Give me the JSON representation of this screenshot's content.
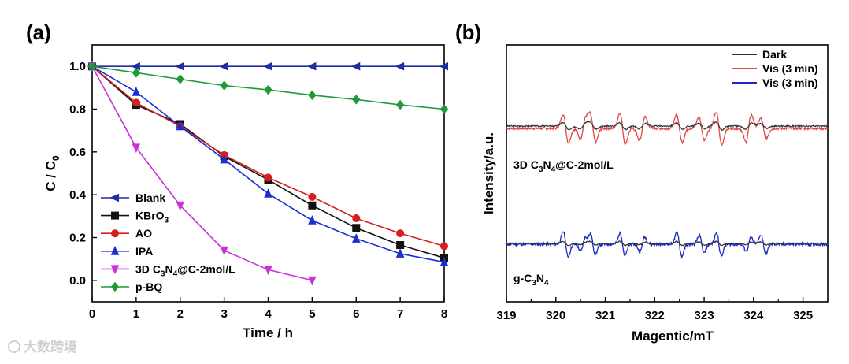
{
  "watermark": "大数跨境",
  "chart_data": [
    {
      "panel": "(a)",
      "type": "line",
      "xlabel": "Time / h",
      "ylabel_main": "C / C",
      "ylabel_sub": "0",
      "xlim": [
        0,
        8
      ],
      "ylim": [
        -0.1,
        1.1
      ],
      "xticks": [
        0,
        1,
        2,
        3,
        4,
        5,
        6,
        7,
        8
      ],
      "yticks": [
        0.0,
        0.2,
        0.4,
        0.6,
        0.8,
        1.0
      ],
      "legend_position": "bottom-left",
      "series": [
        {
          "name": "Blank",
          "color": "#1f2fa0",
          "marker": "triangle-left",
          "x": [
            0,
            1,
            2,
            3,
            4,
            5,
            6,
            7,
            8
          ],
          "y": [
            1.0,
            1.0,
            1.0,
            1.0,
            1.0,
            1.0,
            1.0,
            1.0,
            1.0
          ]
        },
        {
          "name": "KBrO3",
          "legend_main": "KBrO",
          "legend_sub": "3",
          "color": "#111111",
          "marker": "square",
          "x": [
            0,
            1,
            2,
            3,
            4,
            5,
            6,
            7,
            8
          ],
          "y": [
            1.0,
            0.82,
            0.73,
            0.58,
            0.47,
            0.35,
            0.245,
            0.165,
            0.105
          ]
        },
        {
          "name": "AO",
          "color": "#d42020",
          "marker": "circle",
          "x": [
            0,
            1,
            2,
            3,
            4,
            5,
            6,
            7,
            8
          ],
          "y": [
            1.0,
            0.83,
            0.72,
            0.585,
            0.48,
            0.39,
            0.29,
            0.22,
            0.16
          ]
        },
        {
          "name": "IPA",
          "color": "#1a2fd0",
          "marker": "triangle-up",
          "x": [
            0,
            1,
            2,
            3,
            4,
            5,
            6,
            7,
            8
          ],
          "y": [
            1.0,
            0.88,
            0.72,
            0.565,
            0.405,
            0.28,
            0.195,
            0.125,
            0.085
          ]
        },
        {
          "name": "3D C3N4@C-2mol/L",
          "legend_main": "3D C",
          "legend_sub1": "3",
          "legend_mid": "N",
          "legend_sub2": "4",
          "legend_tail": "@C-2mol/L",
          "color": "#c832d8",
          "marker": "triangle-down",
          "x": [
            0,
            1,
            2,
            3,
            4,
            5
          ],
          "y": [
            1.0,
            0.62,
            0.35,
            0.14,
            0.05,
            0.0
          ]
        },
        {
          "name": "p-BQ",
          "color": "#1e9a38",
          "marker": "diamond",
          "x": [
            0,
            1,
            2,
            3,
            4,
            5,
            6,
            7,
            8
          ],
          "y": [
            1.0,
            0.97,
            0.94,
            0.91,
            0.89,
            0.865,
            0.845,
            0.82,
            0.8
          ]
        }
      ]
    },
    {
      "panel": "(b)",
      "type": "line",
      "xlabel": "Magentic/mT",
      "ylabel": "Intensity/a.u.",
      "xlim": [
        319,
        325.5
      ],
      "xticks": [
        319,
        320,
        321,
        322,
        323,
        324,
        325
      ],
      "legend_position": "top-right",
      "legend": [
        {
          "name": "Dark",
          "color": "#333333"
        },
        {
          "name": "Vis (3 min)",
          "color": "#e04848"
        },
        {
          "name": "Vis (3 min)",
          "color": "#1a2abf"
        }
      ],
      "annotations": [
        {
          "main": "3D C",
          "sub1": "3",
          "mid": "N",
          "sub2": "4",
          "tail": "@C-2mol/L"
        },
        {
          "main": "g-C",
          "sub1": "3",
          "mid": "N",
          "sub2": "4",
          "tail": ""
        }
      ],
      "peaks": [
        320.2,
        320.55,
        320.75,
        321.35,
        321.75,
        322.5,
        322.95,
        323.3,
        323.9,
        324.2
      ]
    }
  ]
}
